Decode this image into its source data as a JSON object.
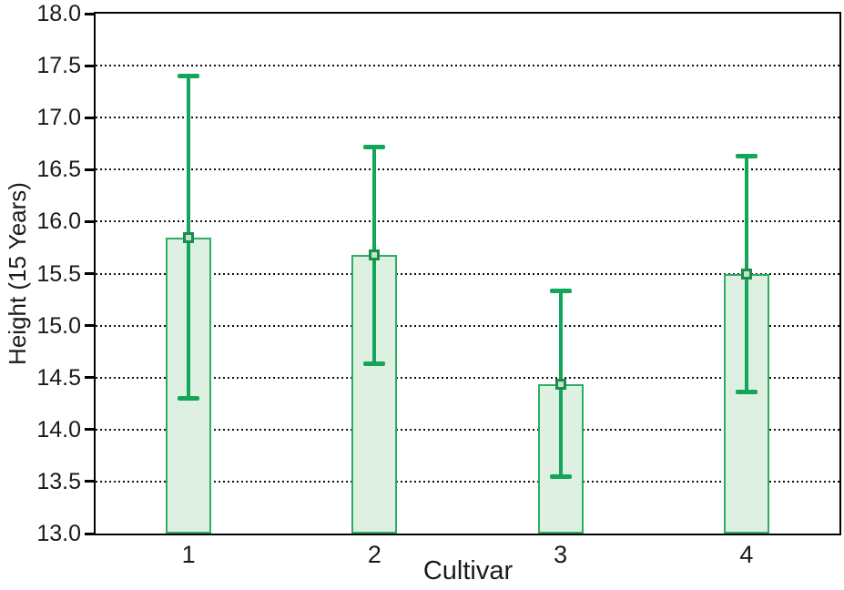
{
  "chart_data": {
    "type": "bar",
    "title": "",
    "xlabel": "Cultivar",
    "ylabel": "Height (15 Years)",
    "categories": [
      "1",
      "2",
      "3",
      "4"
    ],
    "series": [
      {
        "name": "Height (15 Years)",
        "values": [
          15.85,
          15.68,
          14.44,
          15.5
        ],
        "error_upper": [
          17.4,
          16.72,
          15.33,
          16.63
        ],
        "error_lower": [
          14.3,
          14.63,
          13.55,
          14.36
        ]
      }
    ],
    "ylim": [
      13.0,
      18.0
    ],
    "ytick_step": 0.5,
    "ytick_labels": [
      "13.0",
      "13.5",
      "14.0",
      "14.5",
      "15.0",
      "15.5",
      "16.0",
      "16.5",
      "17.0",
      "17.5",
      "18.0"
    ],
    "grid": {
      "horizontal": true,
      "vertical": false,
      "style": "dotted"
    },
    "legend": "none",
    "colors": {
      "bar_fill": "#def0e2",
      "bar_border": "#2eae60",
      "error_bar": "#13a65b",
      "marker_border": "#1c8b4d",
      "marker_fill": "#c2e5c4",
      "axis": "#000000",
      "grid": "#111111",
      "text": "#1a1a1a"
    }
  }
}
